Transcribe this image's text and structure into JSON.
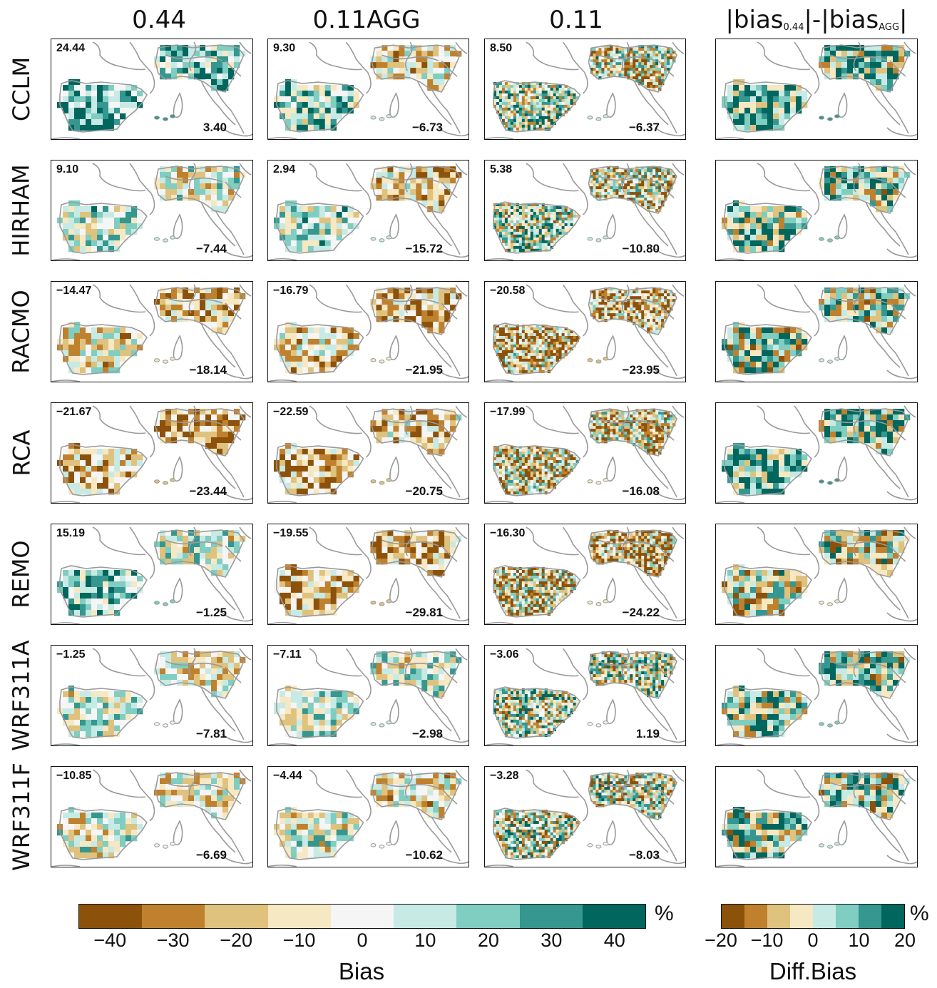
{
  "columns": [
    {
      "label": "0.44"
    },
    {
      "label": "0.11AGG"
    },
    {
      "label": "0.11"
    },
    {
      "label_parts": [
        "|bias",
        "0.44",
        "|-|bias",
        "AGG",
        "|"
      ]
    }
  ],
  "rows": [
    {
      "model": "CCLM",
      "values": [
        [
          "24.44",
          "3.40"
        ],
        [
          "9.30",
          "−6.73"
        ],
        [
          "8.50",
          "−6.37"
        ]
      ]
    },
    {
      "model": "HIRHAM",
      "values": [
        [
          "9.10",
          "−7.44"
        ],
        [
          "2.94",
          "−15.72"
        ],
        [
          "5.38",
          "−10.80"
        ]
      ]
    },
    {
      "model": "RACMO",
      "values": [
        [
          "−14.47",
          "−18.14"
        ],
        [
          "−16.79",
          "−21.95"
        ],
        [
          "−20.58",
          "−23.95"
        ]
      ]
    },
    {
      "model": "RCA",
      "values": [
        [
          "−21.67",
          "−23.44"
        ],
        [
          "−22.59",
          "−20.75"
        ],
        [
          "−17.99",
          "−16.08"
        ]
      ]
    },
    {
      "model": "REMO",
      "values": [
        [
          "15.19",
          "−1.25"
        ],
        [
          "−19.55",
          "−29.81"
        ],
        [
          "−16.30",
          "−24.22"
        ]
      ]
    },
    {
      "model": "WRF311A",
      "values": [
        [
          "−1.25",
          "−7.81"
        ],
        [
          "−7.11",
          "−2.98"
        ],
        [
          "−3.06",
          "1.19"
        ]
      ]
    },
    {
      "model": "WRF311F",
      "values": [
        [
          "−10.85",
          "−6.69"
        ],
        [
          "−4.44",
          "−10.62"
        ],
        [
          "−3.28",
          "−8.03"
        ]
      ]
    }
  ],
  "map_fields": {
    "bias": [
      [
        [
          0.65,
          0.45
        ],
        [
          0.35,
          -0.2
        ],
        [
          0.2,
          -0.15
        ]
      ],
      [
        [
          0.15,
          0.0
        ],
        [
          0.2,
          -0.35
        ],
        [
          0.2,
          -0.25
        ]
      ],
      [
        [
          -0.2,
          -0.4
        ],
        [
          -0.25,
          -0.45
        ],
        [
          -0.45,
          -0.5
        ]
      ],
      [
        [
          -0.4,
          -0.6
        ],
        [
          -0.45,
          -0.35
        ],
        [
          -0.3,
          -0.3
        ]
      ],
      [
        [
          0.45,
          0.1
        ],
        [
          -0.4,
          -0.55
        ],
        [
          -0.3,
          -0.5
        ]
      ],
      [
        [
          0.1,
          -0.15
        ],
        [
          0.15,
          0.05
        ],
        [
          0.05,
          0.05
        ]
      ],
      [
        [
          -0.05,
          -0.1
        ],
        [
          0.05,
          -0.15
        ],
        [
          0.0,
          -0.1
        ]
      ]
    ],
    "diff": [
      0.5,
      0.3,
      0.15,
      0.55,
      -0.1,
      0.25,
      0.15
    ]
  },
  "legend_bias": {
    "ticks": [
      "−40",
      "−30",
      "−20",
      "−10",
      "0",
      "10",
      "20",
      "30",
      "40"
    ],
    "unit": "%",
    "label": "Bias",
    "colors": [
      "#8c510a",
      "#bf812d",
      "#dfc27d",
      "#f6e8c3",
      "#f5f5f5",
      "#c7eae5",
      "#80cdc1",
      "#35978f",
      "#01665e"
    ]
  },
  "legend_diff": {
    "ticks": [
      "−20",
      "−10",
      "0",
      "10",
      "20"
    ],
    "unit": "%",
    "label": "Diff.Bias",
    "colors": [
      "#8c510a",
      "#bf812d",
      "#dfc27d",
      "#f6e8c3",
      "#c7eae5",
      "#80cdc1",
      "#35978f",
      "#01665e"
    ]
  },
  "palette": {
    "brown_dark": "#8c510a",
    "brown": "#bf812d",
    "tan": "#dfc27d",
    "cream": "#f6e8c3",
    "white": "#f5f5f5",
    "mint": "#c7eae5",
    "teal_light": "#80cdc1",
    "teal": "#35978f",
    "teal_dark": "#01665e",
    "border_gray": "#9a9a9a"
  }
}
